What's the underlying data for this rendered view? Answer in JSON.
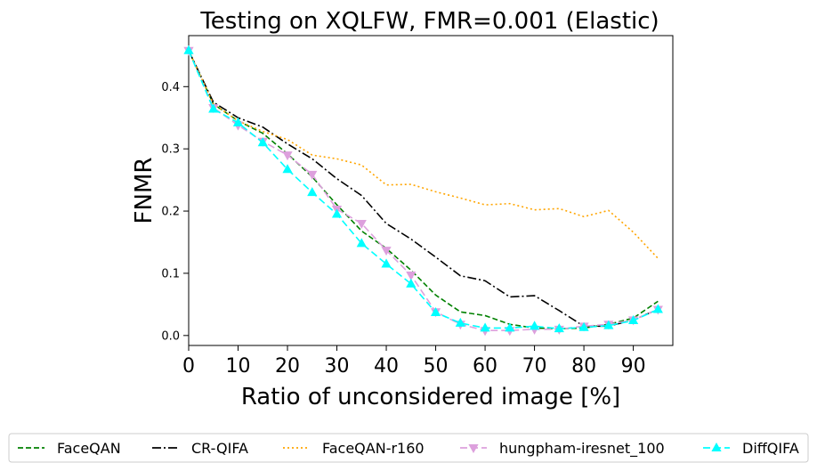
{
  "chart_data": {
    "type": "line",
    "title": "Testing on XQLFW, FMR=0.001 (Elastic)",
    "xlabel": "Ratio of unconsidered image [%]",
    "ylabel": "FNMR",
    "xlim": [
      0,
      98
    ],
    "ylim": [
      -0.016,
      0.482
    ],
    "xticks": [
      0,
      10,
      20,
      30,
      40,
      50,
      60,
      70,
      80,
      90
    ],
    "yticks": [
      0.0,
      0.1,
      0.2,
      0.3,
      0.4
    ],
    "ytick_labels": [
      "0.0",
      "0.1",
      "0.2",
      "0.3",
      "0.4"
    ],
    "grid": false,
    "legend_position": "bottom",
    "x": [
      0,
      5,
      10,
      15,
      20,
      25,
      30,
      35,
      40,
      45,
      50,
      55,
      60,
      65,
      70,
      75,
      80,
      85,
      90,
      95
    ],
    "series": [
      {
        "name": "FaceQAN",
        "color": "#008000",
        "dash": "6,3",
        "marker": "none",
        "values": [
          0.458,
          0.372,
          0.345,
          0.325,
          0.292,
          0.255,
          0.21,
          0.168,
          0.14,
          0.105,
          0.065,
          0.038,
          0.032,
          0.018,
          0.012,
          0.011,
          0.012,
          0.018,
          0.028,
          0.055
        ]
      },
      {
        "name": "CR-QIFA",
        "color": "#000000",
        "dash": "10,3,2,3",
        "marker": "none",
        "values": [
          0.458,
          0.375,
          0.35,
          0.335,
          0.308,
          0.284,
          0.252,
          0.225,
          0.18,
          0.155,
          0.126,
          0.096,
          0.088,
          0.062,
          0.064,
          0.04,
          0.015,
          0.015,
          0.025,
          0.042
        ]
      },
      {
        "name": "FaceQAN-r160",
        "color": "#FFA500",
        "dash": "2,3",
        "marker": "none",
        "values": [
          0.458,
          0.372,
          0.345,
          0.328,
          0.315,
          0.29,
          0.284,
          0.274,
          0.242,
          0.243,
          0.231,
          0.221,
          0.21,
          0.212,
          0.202,
          0.204,
          0.191,
          0.201,
          0.166,
          0.124
        ]
      },
      {
        "name": "hungpham-iresnet_100",
        "color": "#DDA0DD",
        "dash": "8,4",
        "marker": "triangle-down",
        "values": [
          0.458,
          0.366,
          0.338,
          0.312,
          0.29,
          0.259,
          0.203,
          0.18,
          0.137,
          0.097,
          0.038,
          0.018,
          0.008,
          0.008,
          0.01,
          0.01,
          0.015,
          0.018,
          0.025,
          0.042
        ]
      },
      {
        "name": "DiffQIFA",
        "color": "#00FFFF",
        "dash": "8,4",
        "marker": "triangle-up",
        "values": [
          0.458,
          0.364,
          0.342,
          0.31,
          0.267,
          0.23,
          0.195,
          0.148,
          0.115,
          0.083,
          0.037,
          0.02,
          0.012,
          0.012,
          0.015,
          0.011,
          0.013,
          0.016,
          0.024,
          0.042
        ]
      }
    ]
  }
}
